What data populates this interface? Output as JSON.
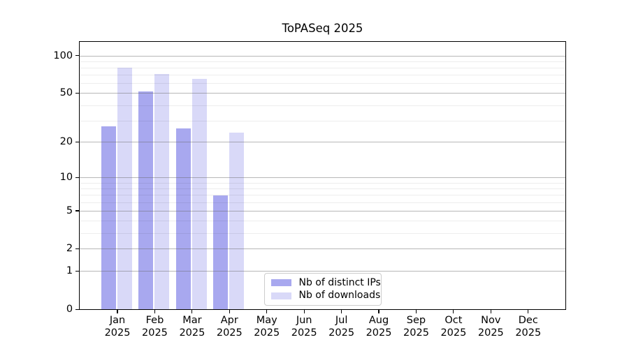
{
  "title": "ToPASeq 2025",
  "colors": {
    "distinct_ips": "#a8a8ef",
    "downloads": "#d9d9f8",
    "spine": "#000000",
    "major_grid": "#b3b3b3",
    "minor_grid": "#ededed",
    "background": "#ffffff"
  },
  "legend": {
    "items": [
      {
        "label": "Nb of distinct IPs",
        "color": "#a8a8ef"
      },
      {
        "label": "Nb of downloads",
        "color": "#d9d9f8"
      }
    ]
  },
  "chart_data": {
    "type": "bar",
    "title": "ToPASeq 2025",
    "categories": [
      "Jan",
      "Feb",
      "Mar",
      "Apr",
      "May",
      "Jun",
      "Jul",
      "Aug",
      "Sep",
      "Oct",
      "Nov",
      "Dec"
    ],
    "category_year": "2025",
    "series": [
      {
        "name": "Nb of distinct IPs",
        "color": "#a8a8ef",
        "values": [
          27,
          52,
          26,
          7,
          0,
          0,
          0,
          0,
          0,
          0,
          0,
          0
        ]
      },
      {
        "name": "Nb of downloads",
        "color": "#d9d9f8",
        "values": [
          80,
          72,
          65,
          24,
          0,
          0,
          0,
          0,
          0,
          0,
          0,
          0
        ]
      }
    ],
    "xlabel": "",
    "ylabel": "",
    "y_axis": {
      "scale": "log1p",
      "ticks": [
        0,
        1,
        2,
        5,
        10,
        20,
        50,
        100
      ],
      "minor_ticks": [
        3,
        4,
        6,
        7,
        8,
        9,
        30,
        40,
        60,
        70,
        80,
        90
      ],
      "ylim": [
        0,
        128
      ]
    },
    "grid": true,
    "legend_position": "lower center"
  }
}
